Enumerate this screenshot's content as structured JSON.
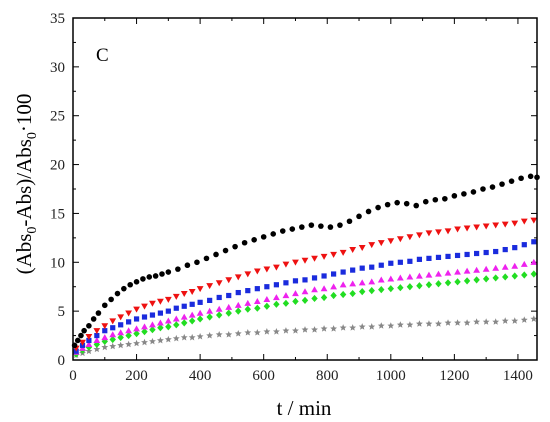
{
  "chart_data": {
    "type": "scatter",
    "panel_label": "C",
    "xlabel": "t / min",
    "ylabel_parts": [
      "(Abs",
      "0",
      "-Abs)/Abs",
      "0",
      "·100"
    ],
    "xlim": [
      0,
      1460
    ],
    "ylim": [
      0,
      35
    ],
    "xticks": [
      0,
      200,
      400,
      600,
      800,
      1000,
      1200,
      1400
    ],
    "yticks": [
      0,
      5,
      10,
      15,
      20,
      25,
      30,
      35
    ],
    "grid": false,
    "legend": "none",
    "series": [
      {
        "marker": "circle",
        "color": "#000000",
        "x": [
          5,
          15,
          25,
          35,
          50,
          65,
          80,
          100,
          120,
          140,
          160,
          180,
          200,
          220,
          240,
          260,
          280,
          300,
          330,
          360,
          390,
          420,
          450,
          480,
          510,
          540,
          570,
          600,
          630,
          660,
          690,
          720,
          750,
          780,
          810,
          840,
          870,
          900,
          930,
          960,
          990,
          1020,
          1050,
          1080,
          1110,
          1140,
          1170,
          1200,
          1230,
          1260,
          1290,
          1320,
          1350,
          1380,
          1410,
          1440,
          1460
        ],
        "y": [
          1.5,
          2.0,
          2.5,
          3.0,
          3.5,
          4.2,
          4.8,
          5.6,
          6.2,
          6.8,
          7.3,
          7.7,
          8.0,
          8.3,
          8.5,
          8.6,
          8.8,
          9.0,
          9.3,
          9.7,
          10.0,
          10.4,
          10.8,
          11.2,
          11.6,
          12.0,
          12.3,
          12.6,
          12.9,
          13.2,
          13.4,
          13.6,
          13.8,
          13.7,
          13.6,
          13.8,
          14.2,
          14.7,
          15.2,
          15.6,
          15.9,
          16.1,
          16.0,
          15.8,
          16.2,
          16.4,
          16.5,
          16.8,
          17.0,
          17.2,
          17.5,
          17.7,
          18.0,
          18.3,
          18.6,
          18.8,
          18.7
        ]
      },
      {
        "marker": "triangle-down",
        "color": "#ee1111",
        "x": [
          10,
          30,
          50,
          75,
          100,
          125,
          150,
          175,
          200,
          225,
          250,
          275,
          300,
          325,
          350,
          375,
          400,
          430,
          460,
          490,
          520,
          550,
          580,
          610,
          640,
          670,
          700,
          730,
          760,
          790,
          820,
          850,
          880,
          910,
          940,
          970,
          1000,
          1030,
          1060,
          1090,
          1120,
          1150,
          1180,
          1210,
          1240,
          1270,
          1300,
          1330,
          1360,
          1390,
          1420,
          1450
        ],
        "y": [
          1.2,
          1.8,
          2.4,
          3.0,
          3.5,
          4.0,
          4.4,
          4.8,
          5.2,
          5.5,
          5.8,
          6.0,
          6.2,
          6.5,
          6.8,
          7.0,
          7.3,
          7.6,
          7.9,
          8.2,
          8.5,
          8.8,
          9.1,
          9.3,
          9.5,
          9.8,
          10.0,
          10.2,
          10.4,
          10.6,
          10.8,
          11.0,
          11.3,
          11.5,
          11.8,
          12.0,
          12.2,
          12.4,
          12.6,
          12.8,
          13.0,
          13.1,
          13.2,
          13.4,
          13.5,
          13.6,
          13.7,
          13.8,
          13.9,
          14.0,
          14.2,
          14.3
        ]
      },
      {
        "marker": "square",
        "color": "#1a2bdd",
        "x": [
          10,
          30,
          50,
          75,
          100,
          125,
          150,
          175,
          200,
          225,
          250,
          275,
          300,
          325,
          350,
          375,
          400,
          430,
          460,
          490,
          520,
          550,
          580,
          610,
          640,
          670,
          700,
          730,
          760,
          790,
          820,
          850,
          880,
          910,
          940,
          970,
          1000,
          1030,
          1060,
          1090,
          1120,
          1150,
          1180,
          1210,
          1240,
          1270,
          1300,
          1330,
          1360,
          1390,
          1420,
          1450
        ],
        "y": [
          0.9,
          1.5,
          2.0,
          2.5,
          3.0,
          3.3,
          3.6,
          3.9,
          4.2,
          4.4,
          4.6,
          4.8,
          5.0,
          5.3,
          5.5,
          5.7,
          5.9,
          6.1,
          6.4,
          6.6,
          6.9,
          7.1,
          7.3,
          7.5,
          7.7,
          7.9,
          8.1,
          8.2,
          8.4,
          8.6,
          8.8,
          9.0,
          9.2,
          9.4,
          9.5,
          9.7,
          9.9,
          10.0,
          10.1,
          10.3,
          10.4,
          10.5,
          10.6,
          10.7,
          10.8,
          10.9,
          11.0,
          11.1,
          11.3,
          11.5,
          11.8,
          12.1
        ]
      },
      {
        "marker": "triangle-up",
        "color": "#ee22ee",
        "x": [
          10,
          30,
          50,
          75,
          100,
          125,
          150,
          175,
          200,
          225,
          250,
          275,
          300,
          325,
          350,
          375,
          400,
          430,
          460,
          490,
          520,
          550,
          580,
          610,
          640,
          670,
          700,
          730,
          760,
          790,
          820,
          850,
          880,
          910,
          940,
          970,
          1000,
          1030,
          1060,
          1090,
          1120,
          1150,
          1180,
          1210,
          1240,
          1270,
          1300,
          1330,
          1360,
          1390,
          1420,
          1450
        ],
        "y": [
          0.8,
          1.2,
          1.6,
          2.0,
          2.3,
          2.6,
          2.8,
          3.0,
          3.2,
          3.4,
          3.6,
          3.8,
          4.0,
          4.2,
          4.4,
          4.6,
          4.8,
          5.0,
          5.2,
          5.4,
          5.6,
          5.8,
          6.0,
          6.2,
          6.4,
          6.6,
          6.8,
          7.0,
          7.2,
          7.3,
          7.5,
          7.7,
          7.8,
          7.9,
          8.0,
          8.2,
          8.3,
          8.4,
          8.5,
          8.6,
          8.7,
          8.8,
          8.9,
          9.0,
          9.1,
          9.2,
          9.3,
          9.4,
          9.5,
          9.6,
          9.8,
          10.0
        ]
      },
      {
        "marker": "diamond",
        "color": "#22dd22",
        "x": [
          10,
          30,
          50,
          75,
          100,
          125,
          150,
          175,
          200,
          225,
          250,
          275,
          300,
          325,
          350,
          375,
          400,
          430,
          460,
          490,
          520,
          550,
          580,
          610,
          640,
          670,
          700,
          730,
          760,
          790,
          820,
          850,
          880,
          910,
          940,
          970,
          1000,
          1030,
          1060,
          1090,
          1120,
          1150,
          1180,
          1210,
          1240,
          1270,
          1300,
          1330,
          1360,
          1390,
          1420,
          1450
        ],
        "y": [
          0.6,
          1.0,
          1.3,
          1.6,
          1.9,
          2.1,
          2.3,
          2.5,
          2.7,
          2.9,
          3.1,
          3.3,
          3.4,
          3.6,
          3.8,
          4.0,
          4.2,
          4.4,
          4.6,
          4.8,
          5.0,
          5.2,
          5.3,
          5.5,
          5.7,
          5.8,
          6.0,
          6.1,
          6.3,
          6.4,
          6.6,
          6.7,
          6.8,
          7.0,
          7.1,
          7.2,
          7.3,
          7.4,
          7.5,
          7.6,
          7.7,
          7.8,
          7.9,
          8.0,
          8.1,
          8.2,
          8.3,
          8.4,
          8.5,
          8.6,
          8.7,
          8.8
        ]
      },
      {
        "marker": "star",
        "color": "#888888",
        "x": [
          10,
          30,
          50,
          75,
          100,
          125,
          150,
          175,
          200,
          225,
          250,
          275,
          300,
          325,
          350,
          375,
          400,
          430,
          460,
          490,
          520,
          550,
          580,
          610,
          640,
          670,
          700,
          730,
          760,
          790,
          820,
          850,
          880,
          910,
          940,
          970,
          1000,
          1030,
          1060,
          1090,
          1120,
          1150,
          1180,
          1210,
          1240,
          1270,
          1300,
          1330,
          1360,
          1390,
          1420,
          1450
        ],
        "y": [
          0.5,
          0.7,
          0.9,
          1.1,
          1.3,
          1.4,
          1.5,
          1.6,
          1.7,
          1.8,
          1.9,
          2.0,
          2.1,
          2.2,
          2.3,
          2.3,
          2.4,
          2.5,
          2.6,
          2.6,
          2.7,
          2.8,
          2.8,
          2.9,
          2.9,
          3.0,
          3.0,
          3.1,
          3.1,
          3.2,
          3.2,
          3.3,
          3.3,
          3.4,
          3.4,
          3.5,
          3.5,
          3.6,
          3.6,
          3.7,
          3.7,
          3.7,
          3.8,
          3.8,
          3.8,
          3.9,
          3.9,
          3.9,
          4.0,
          4.0,
          4.1,
          4.2
        ]
      }
    ]
  }
}
